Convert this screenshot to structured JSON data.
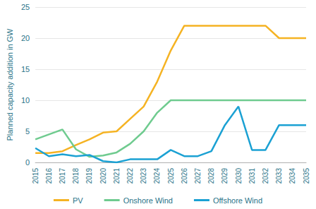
{
  "chart_data": {
    "type": "line",
    "ylabel": "Planned capacity addition in GW",
    "categories": [
      "2015",
      "2016",
      "2017",
      "2018",
      "2019",
      "2020",
      "2021",
      "2022",
      "2023",
      "2024",
      "2025",
      "2026",
      "2027",
      "2028",
      "2029",
      "2030",
      "2031",
      "2032",
      "2033",
      "2034",
      "2035"
    ],
    "series": [
      {
        "name": "PV",
        "color": "#f5b323",
        "values": [
          1.5,
          1.5,
          1.8,
          2.8,
          3.7,
          4.8,
          5.0,
          7.0,
          9.0,
          13.0,
          18.0,
          22,
          22,
          22,
          22,
          22,
          22,
          22,
          20,
          20,
          20
        ]
      },
      {
        "name": "Onshore Wind",
        "color": "#6fcb8f",
        "values": [
          3.7,
          4.5,
          5.3,
          2.1,
          0.9,
          1.1,
          1.6,
          3.0,
          5.0,
          8.0,
          10,
          10,
          10,
          10,
          10,
          10,
          10,
          10,
          10,
          10,
          10
        ]
      },
      {
        "name": "Offshore Wind",
        "color": "#1ba1d3",
        "values": [
          2.3,
          1.0,
          1.3,
          1.0,
          1.2,
          0.2,
          0.0,
          0.5,
          0.5,
          0.5,
          2.0,
          1.0,
          1.0,
          1.8,
          6.0,
          9.0,
          2.0,
          2.0,
          6.0,
          6.0,
          6.0
        ]
      }
    ],
    "ylim": [
      0,
      25
    ],
    "yticks": [
      0,
      5,
      10,
      15,
      20,
      25
    ],
    "grid": true,
    "legend": "bottom"
  }
}
